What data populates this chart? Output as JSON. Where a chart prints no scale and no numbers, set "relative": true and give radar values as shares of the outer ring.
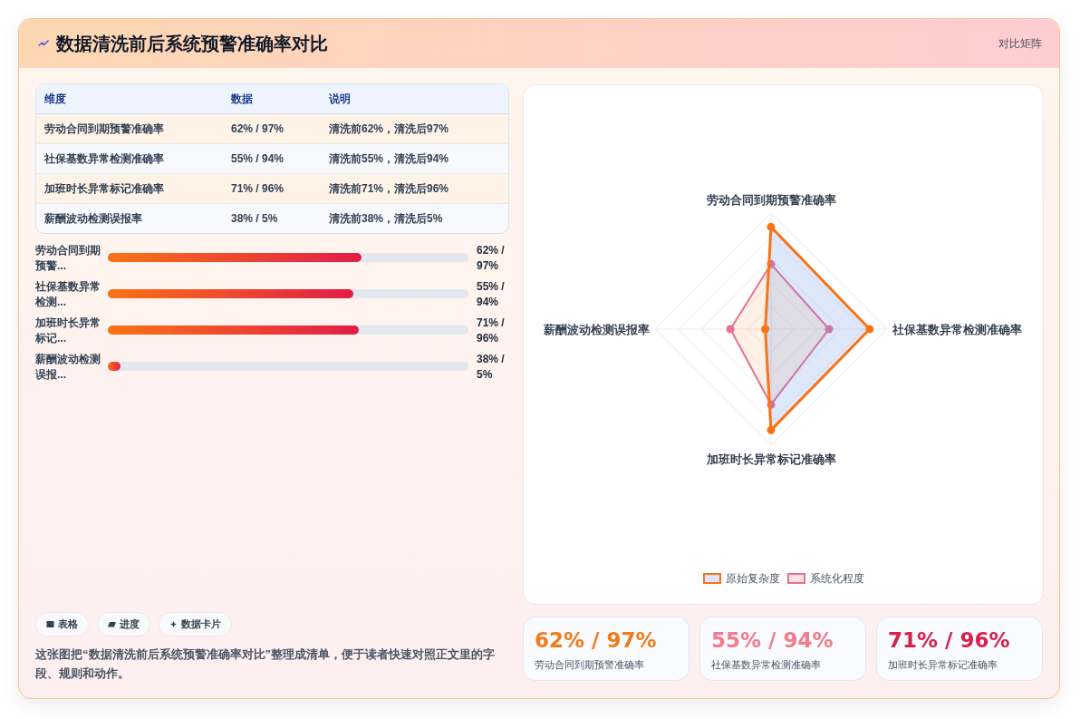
{
  "chart_data": [
    {
      "type": "other",
      "title": "数据清洗前后系统预警准确率对比",
      "subtitle": "对比矩阵"
    },
    {
      "type": "other",
      "annotations": [
        "维度",
        "数据",
        "说明",
        "劳动合同到期预警准确率",
        "62% / 97%",
        "清洗前62%，清洗后97%",
        "社保基数异常检测准确率",
        "55% / 94%",
        "清洗前55%，清洗后94%",
        "加班时长异常标记准确率",
        "71% / 96%",
        "清洗前71%，清洗后96%",
        "薪酬波动检测误报率",
        "38% / 5%",
        "清洗前38%，清洗后5%"
      ]
    },
    {
      "type": "bar",
      "orientation": "horizontal",
      "categories": [
        "劳动合同到期预警...",
        "社保基数异常检测...",
        "加班时长异常标记...",
        "薪酬波动检测误报..."
      ],
      "values": [
        97,
        94,
        96,
        5
      ],
      "value_labels": [
        "62% / 97%",
        "55% / 94%",
        "71% / 96%",
        "38% / 5%"
      ],
      "xlim": [
        0,
        138
      ],
      "color": "#f97316"
    },
    {
      "type": "other",
      "annotations": [
        "表格",
        "进度",
        "数据卡片",
        "这张图把“数据清洗前后系统预警准确率对比”整理成清单，便于读者快速对照正文里的字段、规则和动作。"
      ]
    },
    {
      "type": "radar",
      "relative": true,
      "categories": [
        "劳动合同到期预警准确率",
        "社保基数异常检测准确率",
        "加班时长异常标记准确率",
        "薪酬波动检测误报率"
      ],
      "series": [
        {
          "name": "原始复杂度",
          "color": "#f97316",
          "values": [
            0.88,
            0.85,
            0.87,
            0.05
          ]
        },
        {
          "name": "系统化程度",
          "color": "#e8718f",
          "values": [
            0.56,
            0.5,
            0.65,
            0.35
          ]
        }
      ],
      "grid": true,
      "legend": "bottom",
      "marker": "circle"
    },
    {
      "type": "other",
      "categories": [
        "劳动合同到期预警准确率",
        "社保基数异常检测准确率",
        "加班时长异常标记准确率"
      ],
      "value_labels": [
        "62% / 97%",
        "55% / 94%",
        "71% / 96%"
      ]
    }
  ]
}
